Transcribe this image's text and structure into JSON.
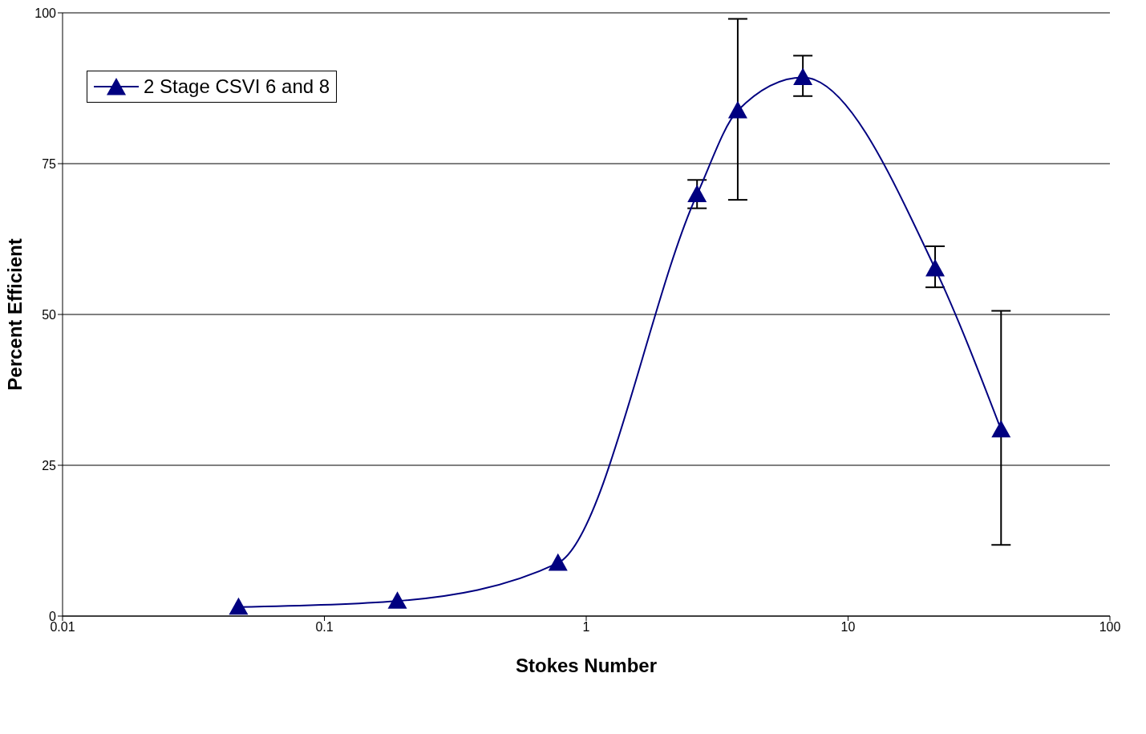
{
  "chart_data": {
    "type": "line",
    "xlabel": "Stokes Number",
    "ylabel": "Percent Efficient",
    "x": [
      0.047,
      0.19,
      0.78,
      2.65,
      3.79,
      6.72,
      21.5,
      38.4
    ],
    "series": [
      {
        "name": "2 Stage CSVI 6 and 8",
        "color": "#000080",
        "values": [
          1.5,
          2.5,
          8.8,
          69.9,
          83.8,
          89.3,
          57.6,
          30.9
        ],
        "errors": [
          null,
          null,
          null,
          [
            67.6,
            72.3
          ],
          [
            69,
            99
          ],
          [
            86.2,
            92.9
          ],
          [
            54.5,
            61.3
          ],
          [
            11.8,
            50.6
          ]
        ]
      }
    ],
    "log": "x",
    "xlim": [
      0.01,
      100
    ],
    "xticks": [
      0.01,
      0.1,
      1,
      10,
      100
    ],
    "ylim": [
      0,
      100
    ],
    "yticks": [
      0,
      25,
      50,
      75,
      100
    ],
    "grid": "y",
    "legend": "top left",
    "marker": "triangle",
    "line_style": "solid"
  }
}
